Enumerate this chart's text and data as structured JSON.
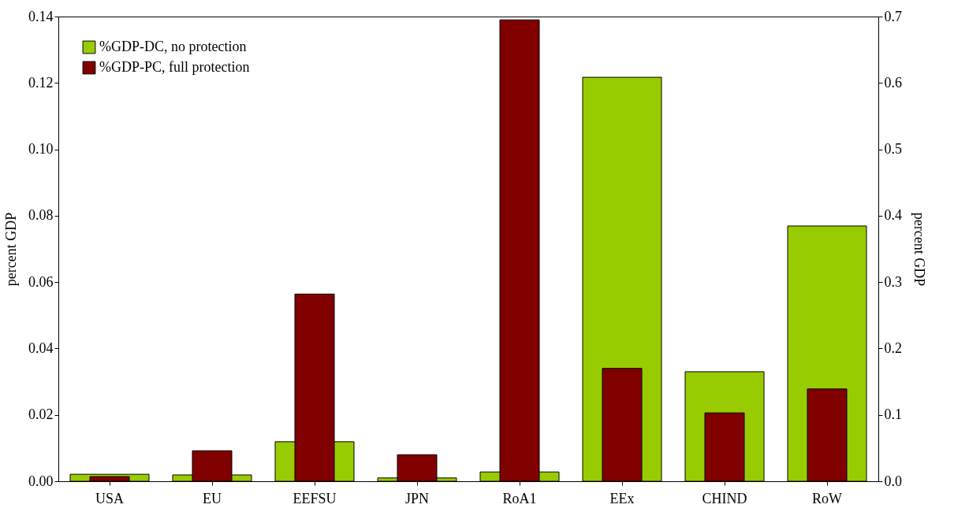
{
  "chart_data": {
    "type": "bar",
    "categories": [
      "USA",
      "EU",
      "EEFSU",
      "JPN",
      "RoA1",
      "EEx",
      "CHIND",
      "RoW"
    ],
    "ylabel": "percent GDP",
    "y2label": "percent GDP",
    "ylim": [
      0,
      0.14
    ],
    "yticks": [
      {
        "value": 0,
        "label": "0.00"
      },
      {
        "value": 0.02,
        "label": "0.02"
      },
      {
        "value": 0.04,
        "label": "0.04"
      },
      {
        "value": 0.06,
        "label": "0.06"
      },
      {
        "value": 0.08,
        "label": "0.08"
      },
      {
        "value": 0.1,
        "label": "0.10"
      },
      {
        "value": 0.12,
        "label": "0.12"
      },
      {
        "value": 0.14,
        "label": "0.14"
      }
    ],
    "y2lim": [
      0,
      0.7
    ],
    "y2ticks": [
      {
        "value": 0,
        "label": "0.0"
      },
      0.1,
      0.2,
      0.3,
      0.4,
      0.5,
      0.6,
      0.7
    ],
    "legend": "top left",
    "grid": false,
    "series": [
      {
        "name": "%GDP-DC, no protection",
        "color": "#99cc00",
        "values": [
          0.0021,
          0.0019,
          0.0119,
          0.001,
          0.0028,
          0.1217,
          0.033,
          0.0769
        ]
      },
      {
        "name": "%GDP-PC, full protection",
        "color": "#800000",
        "axis": "y2",
        "values": [
          0.007,
          0.046,
          0.282,
          0.04,
          0.695,
          0.17,
          0.103,
          0.139
        ]
      }
    ]
  }
}
